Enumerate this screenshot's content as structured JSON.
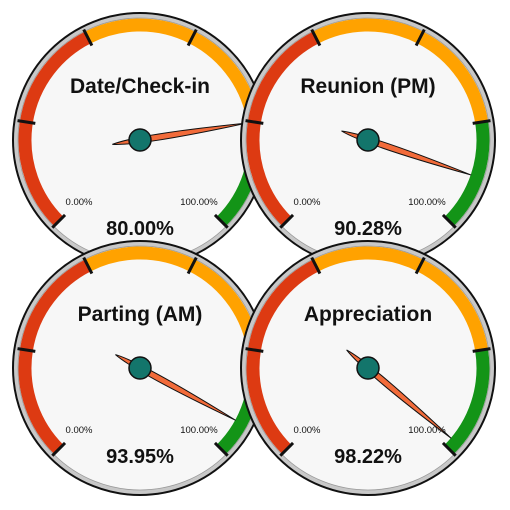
{
  "chart_data": {
    "type": "gauge",
    "min_label": "0.00%",
    "max_label": "100.00%",
    "bands": [
      {
        "from": 0,
        "to": 40,
        "color": "#dd3a12"
      },
      {
        "from": 40,
        "to": 80,
        "color": "#ffa200"
      },
      {
        "from": 80,
        "to": 100,
        "color": "#139417"
      }
    ],
    "gauges": [
      {
        "title": "Date/Check-in",
        "value": 80.0,
        "value_label": "80.00%"
      },
      {
        "title": "Reunion (PM)",
        "value": 90.28,
        "value_label": "90.28%"
      },
      {
        "title": "Parting (AM)",
        "value": 93.95,
        "value_label": "93.95%"
      },
      {
        "title": "Appreciation",
        "value": 98.22,
        "value_label": "98.22%"
      }
    ],
    "colors": {
      "needle": "#f26b3a",
      "hub": "#13756b",
      "face": "#f7f7f7",
      "rim": "#c8c8c8"
    }
  }
}
